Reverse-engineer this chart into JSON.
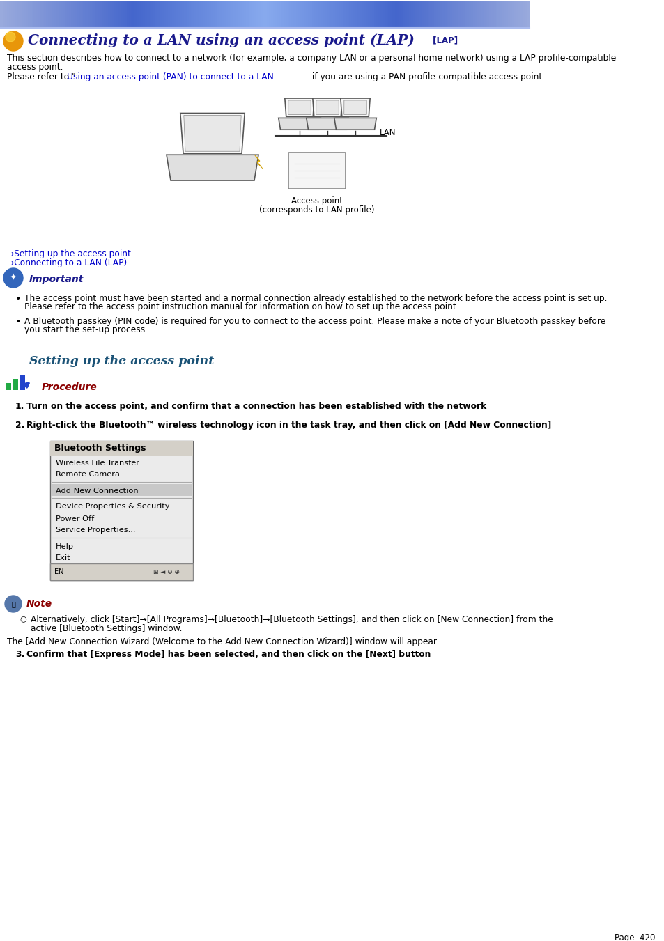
{
  "page_bg": "#ffffff",
  "title_text": "Connecting to a LAN using an access point (LAP)",
  "title_tag": " [LAP]",
  "title_color": "#1a1a8c",
  "title_fontsize": 14.5,
  "body_fontsize": 8.8,
  "small_fontsize": 8.2,
  "body_text_color": "#000000",
  "link_color": "#0000cc",
  "important_color": "#1a1a8c",
  "section_heading_color": "#1a5276",
  "procedure_color": "#8B0000",
  "desc_line1": "This section describes how to connect to a network (for example, a company LAN or a personal home network) using a LAP profile-compatible",
  "desc_line2": "access point.",
  "link1": "→Setting up the access point",
  "link2": "→Connecting to a LAN (LAP)",
  "important_label": "Important",
  "bullet1_line1": "The access point must have been started and a normal connection already established to the network before the access point is set up.",
  "bullet1_line2": "Please refer to the access point instruction manual for information on how to set up the access point.",
  "bullet2_line1": "A Bluetooth passkey (PIN code) is required for you to connect to the access point. Please make a note of your Bluetooth passkey before",
  "bullet2_line2": "you start the set-up process.",
  "section_heading": "Setting up the access point",
  "procedure_label": "Procedure",
  "step1": "Turn on the access point, and confirm that a connection has been established with the network",
  "step2": "Right-click the Bluetooth™ wireless technology icon in the task tray, and then click on [Add New Connection]",
  "menu_title": "Bluetooth Settings",
  "menu_items": [
    "Wireless File Transfer",
    "Remote Camera",
    null,
    "Add New Connection",
    null,
    "Device Properties & Security...",
    "Power Off",
    "Service Properties...",
    null,
    "Help",
    "Exit"
  ],
  "note_label": "Note",
  "note_text": "Alternatively, click [Start]→[All Programs]→[Bluetooth]→[Bluetooth Settings], and then click on [New Connection] from the",
  "note_text2": "active [Bluetooth Settings] window.",
  "wizard_text": "The [Add New Connection Wizard (Welcome to the Add New Connection Wizard)] window will appear.",
  "step3": "Confirm that [Express Mode] has been selected, and then click on the [Next] button",
  "page_num": "Page  420"
}
